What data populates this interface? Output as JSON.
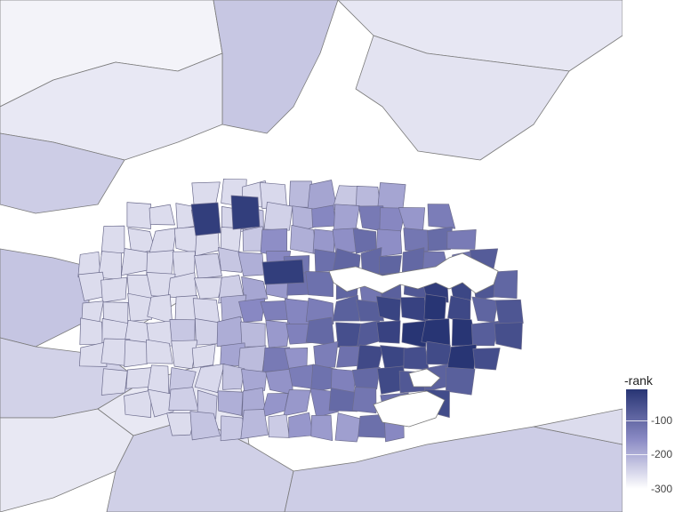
{
  "legend": {
    "title": "-rank",
    "ticks": [
      {
        "value": -100,
        "label": "-100"
      },
      {
        "value": -200,
        "label": "-200"
      },
      {
        "value": -300,
        "label": "-300"
      }
    ],
    "range": [
      -300,
      -10
    ],
    "color_low": "#ffffff",
    "color_mid": "#8a8ac4",
    "color_high": "#283574"
  },
  "map": {
    "background": "#ffffff",
    "water_color": "#ffffff",
    "border_color": "#6d6d8e"
  }
}
